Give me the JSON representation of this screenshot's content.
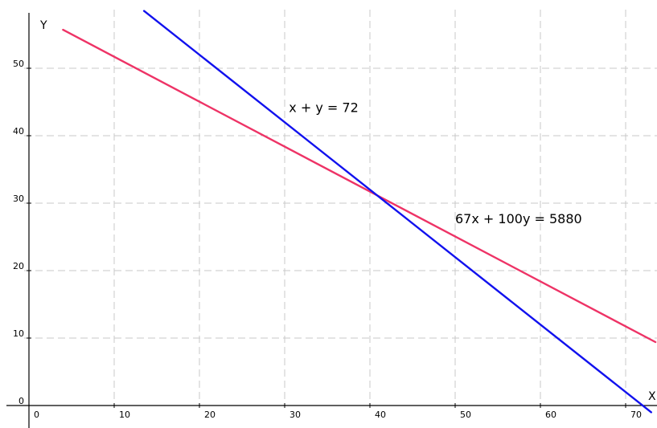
{
  "chart_data": {
    "type": "line",
    "title": "",
    "xlabel": "X",
    "ylabel": "Y",
    "xlim": [
      -0.5,
      73.5
    ],
    "ylim": [
      -0.5,
      57.5
    ],
    "grid": true,
    "x_ticks": [
      0,
      10,
      20,
      30,
      40,
      50,
      60,
      70
    ],
    "y_ticks": [
      0,
      10,
      20,
      30,
      40,
      50
    ],
    "x_tick_labels": [
      "0",
      "10",
      "20",
      "30",
      "40",
      "50",
      "60",
      "70"
    ],
    "y_tick_labels": [
      "0",
      "10",
      "20",
      "30",
      "40",
      "50"
    ],
    "series": [
      {
        "name": "67x + 100y = 5880",
        "color": "#ee3366",
        "points": [
          [
            4,
            55.7
          ],
          [
            73.5,
            9.4
          ]
        ]
      },
      {
        "name": "x + y = 72",
        "color": "#1111ee",
        "points": [
          [
            13.5,
            58.5
          ],
          [
            73,
            -1
          ]
        ]
      }
    ],
    "annotations": [
      {
        "text": "x + y = 72",
        "x": 30.5,
        "y": 43.5
      },
      {
        "text": "67x + 100y = 5880",
        "x": 50,
        "y": 27
      }
    ]
  }
}
